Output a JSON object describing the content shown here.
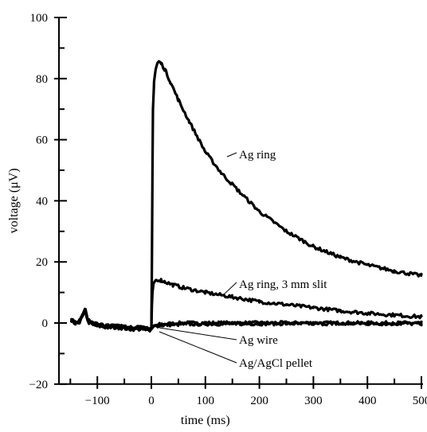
{
  "chart_data": {
    "type": "line",
    "xlabel": "time (ms)",
    "ylabel": "voltage (μV)",
    "xlim": [
      -150,
      500
    ],
    "ylim": [
      -20,
      100
    ],
    "xticks": [
      -100,
      0,
      100,
      200,
      300,
      400,
      500
    ],
    "xtick_labels": [
      "−100",
      "0",
      "100",
      "200",
      "300",
      "400",
      "500"
    ],
    "yticks": [
      -20,
      0,
      20,
      40,
      60,
      80,
      100
    ],
    "ytick_labels": [
      "−20",
      "0",
      "20",
      "40",
      "60",
      "80",
      "100"
    ],
    "grid": false,
    "series": [
      {
        "name": "Ag ring",
        "x": [
          -148,
          -140,
          -132,
          -126,
          -122,
          -118,
          -110,
          -100,
          -80,
          -60,
          -40,
          -20,
          -5,
          0,
          1,
          2,
          3,
          5,
          8,
          11,
          14,
          18,
          25,
          35,
          50,
          70,
          100,
          130,
          160,
          200,
          250,
          300,
          350,
          400,
          450,
          500
        ],
        "y": [
          1,
          0,
          1,
          3,
          4.5,
          1,
          0,
          -0.5,
          -1,
          -1,
          -1.5,
          -1.5,
          -2,
          -2,
          20,
          50,
          70,
          79,
          83,
          85,
          85.5,
          85,
          83,
          79,
          73,
          66,
          56,
          49,
          43.5,
          36.5,
          30,
          25,
          21.5,
          19,
          17,
          15.5
        ]
      },
      {
        "name": "Ag ring, 3 mm slit",
        "x": [
          -148,
          -140,
          -132,
          -126,
          -122,
          -118,
          -110,
          -100,
          -80,
          -60,
          -40,
          -20,
          -5,
          0,
          1,
          2,
          4,
          8,
          12,
          18,
          25,
          40,
          60,
          100,
          150,
          200,
          250,
          300,
          350,
          400,
          450,
          500
        ],
        "y": [
          1,
          0,
          1,
          3,
          4.5,
          1,
          0,
          -0.5,
          -1,
          -1,
          -1.5,
          -1.5,
          -2,
          -2,
          6,
          10,
          13,
          14,
          14.2,
          14,
          13.5,
          12.5,
          11.5,
          10,
          8.5,
          7,
          6,
          5,
          4,
          3.2,
          2.6,
          2
        ]
      },
      {
        "name": "Ag wire",
        "x": [
          -148,
          -140,
          -132,
          -126,
          -122,
          -118,
          -110,
          -100,
          -80,
          -60,
          -40,
          -20,
          -5,
          0,
          5,
          15,
          30,
          60,
          100,
          200,
          300,
          400,
          500
        ],
        "y": [
          1,
          0,
          1,
          3,
          4.5,
          1,
          0,
          -0.5,
          -1,
          -1,
          -1.5,
          -1.5,
          -2,
          -1.5,
          -0.8,
          -0.5,
          -0.3,
          0,
          0,
          0,
          0,
          0,
          0
        ]
      },
      {
        "name": "Ag/AgCl pellet",
        "x": [
          -148,
          -140,
          -132,
          -126,
          -122,
          -118,
          -110,
          -100,
          -80,
          -60,
          -40,
          -20,
          -5,
          0,
          5,
          15,
          30,
          60,
          100,
          200,
          300,
          400,
          500
        ],
        "y": [
          0.5,
          -0.5,
          0.5,
          2.5,
          4,
          0.5,
          -0.5,
          -1,
          -1.5,
          -1.5,
          -2,
          -2,
          -2.5,
          -2,
          -1,
          -0.8,
          -0.6,
          -0.4,
          -0.3,
          -0.2,
          -0.2,
          -0.2,
          -0.2
        ]
      }
    ],
    "annotations": [
      {
        "text": "Ag ring",
        "series": "Ag ring"
      },
      {
        "text": "Ag ring, 3 mm slit",
        "series": "Ag ring, 3 mm slit"
      },
      {
        "text": "Ag wire",
        "series": "Ag wire"
      },
      {
        "text": "Ag/AgCl pellet",
        "series": "Ag/AgCl pellet"
      }
    ]
  }
}
